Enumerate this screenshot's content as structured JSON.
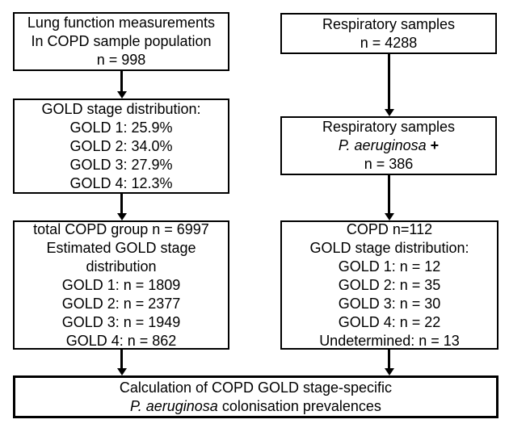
{
  "colors": {
    "background": "#ffffff",
    "box_border": "#000000",
    "text": "#000000",
    "arrow": "#000000"
  },
  "boxes": {
    "lung_function": {
      "lines": [
        "Lung function measurements",
        "In COPD sample population",
        "n = 998"
      ]
    },
    "gold_stage_pct": {
      "lines": [
        "GOLD stage distribution:",
        "GOLD 1: 25.9%",
        "GOLD 2: 34.0%",
        "GOLD 3: 27.9%",
        "GOLD 4: 12.3%"
      ]
    },
    "total_copd": {
      "lines": [
        "total COPD group n = 6997",
        "Estimated GOLD stage",
        "distribution",
        "GOLD 1: n = 1809",
        "GOLD 2: n = 2377",
        "GOLD 3: n = 1949",
        "GOLD 4: n = 862"
      ]
    },
    "resp_samples": {
      "lines": [
        "Respiratory samples",
        "n = 4288"
      ]
    },
    "resp_pa": {
      "line1": "Respiratory samples",
      "species_italic": "P. aeruginosa",
      "plus_bold": " +",
      "line3": "n = 386"
    },
    "copd_counts": {
      "lines": [
        "COPD n=112",
        "GOLD stage distribution:",
        "GOLD 1: n = 12",
        "GOLD 2: n = 35",
        "GOLD 3: n = 30",
        "GOLD 4: n = 22",
        "Undetermined: n = 13"
      ]
    },
    "calculation": {
      "line1": "Calculation of COPD GOLD stage-specific",
      "species_italic": "P. aeruginosa",
      "line2_rest": " colonisation prevalences"
    }
  }
}
